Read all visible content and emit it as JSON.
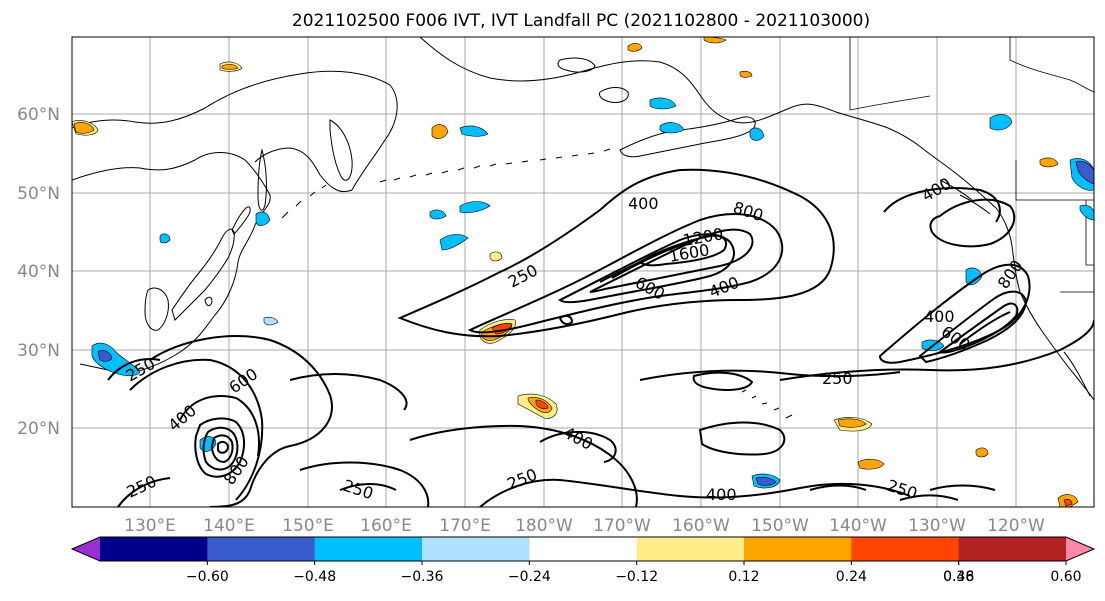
{
  "title": "2021102500 F006 IVT, IVT Landfall PC (2021102800 - 2021103000)",
  "lat_labels": [
    "60°N",
    "50°N",
    "40°N",
    "30°N",
    "20°N"
  ],
  "lon_labels": [
    "130°E",
    "140°E",
    "150°E",
    "160°E",
    "170°E",
    "180°W",
    "170°W",
    "160°W",
    "150°W",
    "140°W",
    "130°W",
    "120°W"
  ],
  "colorbar": {
    "colors": [
      "#9b30d0",
      "#00008b",
      "#3a5bcd",
      "#00bfff",
      "#aee0ff",
      "#ffffff",
      "#ffee88",
      "#ffa500",
      "#ff4500",
      "#b22222",
      "#ff88aa"
    ],
    "tick_labels": [
      "−0.60",
      "−0.48",
      "−0.36",
      "−0.24",
      "−0.12",
      "0.12",
      "0.24",
      "0.36",
      "0.48",
      "0.60"
    ]
  },
  "contour_labels": [
    "400",
    "800",
    "1200",
    "1600",
    "250",
    "600",
    "400",
    "400",
    "400",
    "800",
    "250",
    "600",
    "400",
    "250",
    "250",
    "400",
    "250",
    "600",
    "250",
    "800",
    "250",
    "400"
  ]
}
